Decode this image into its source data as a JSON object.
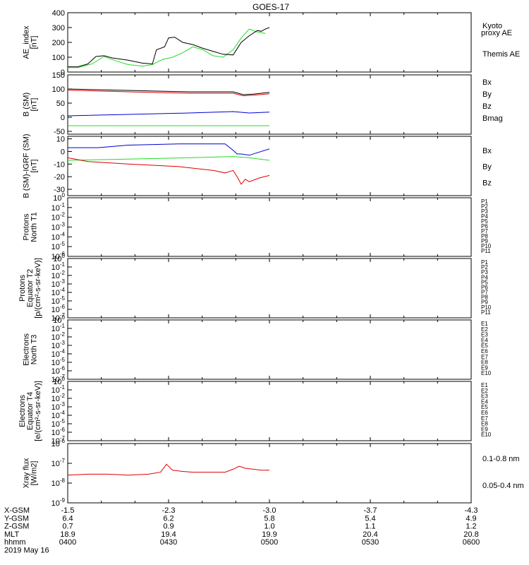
{
  "title": "GOES-17",
  "colors": {
    "black": "#000000",
    "green": "#22dd22",
    "blue": "#0000cc",
    "red": "#dd0000"
  },
  "chart_data": [
    {
      "type": "line",
      "ylabel_lines": [
        "AE_index",
        "[nT]"
      ],
      "ylim": [
        0,
        400
      ],
      "ticks": [
        "400",
        "300",
        "200",
        "100",
        "0"
      ],
      "tick_values": [
        400,
        300,
        200,
        100,
        0
      ],
      "x_hours": [
        4.0,
        5.0
      ],
      "series": [
        {
          "name": "Kyoto",
          "name2": "proxy AE",
          "color": "green",
          "x": [
            4.0,
            4.05,
            4.12,
            4.18,
            4.24,
            4.3,
            4.37,
            4.42,
            4.47,
            4.52,
            4.57,
            4.62,
            4.67,
            4.72,
            4.77,
            4.82,
            4.86,
            4.9,
            4.94,
            4.98
          ],
          "y": [
            30,
            30,
            55,
            105,
            75,
            50,
            40,
            50,
            85,
            100,
            130,
            170,
            150,
            110,
            100,
            150,
            230,
            290,
            270,
            260
          ]
        },
        {
          "name": "Themis AE",
          "color": "black",
          "x": [
            4.0,
            4.05,
            4.1,
            4.14,
            4.18,
            4.22,
            4.3,
            4.37,
            4.42,
            4.44,
            4.48,
            4.5,
            4.53,
            4.57,
            4.62,
            4.67,
            4.72,
            4.77,
            4.82,
            4.86,
            4.9,
            4.94,
            4.96,
            4.98,
            5.0
          ],
          "y": [
            35,
            35,
            55,
            105,
            110,
            95,
            80,
            60,
            55,
            150,
            170,
            230,
            235,
            200,
            185,
            160,
            140,
            120,
            115,
            200,
            245,
            280,
            275,
            290,
            300
          ]
        }
      ]
    },
    {
      "type": "line",
      "ylabel_lines": [
        "B (SM)",
        "[nT]"
      ],
      "ylim": [
        -60,
        150
      ],
      "ticks": [
        "150",
        "100",
        "50",
        "0",
        "-50"
      ],
      "tick_values": [
        150,
        100,
        50,
        0,
        -50
      ],
      "x_hours": [
        4.0,
        5.0
      ],
      "series": [
        {
          "name": "Bx",
          "color": "blue",
          "x": [
            4.0,
            4.3,
            4.6,
            4.82,
            4.9,
            5.0
          ],
          "y": [
            5,
            10,
            15,
            20,
            15,
            18
          ]
        },
        {
          "name": "By",
          "color": "green",
          "x": [
            4.0,
            5.0
          ],
          "y": [
            -30,
            -30
          ]
        },
        {
          "name": "Bz",
          "color": "red",
          "x": [
            4.0,
            4.3,
            4.6,
            4.82,
            4.87,
            4.92,
            5.0
          ],
          "y": [
            96,
            90,
            85,
            85,
            76,
            78,
            83
          ]
        },
        {
          "name": "Bmag",
          "color": "black",
          "x": [
            4.0,
            4.3,
            4.6,
            4.82,
            4.87,
            4.92,
            5.0
          ],
          "y": [
            100,
            95,
            90,
            90,
            80,
            82,
            88
          ]
        }
      ]
    },
    {
      "type": "line",
      "ylabel_lines": [
        "B (SM)-IGRF (SM)",
        "[nT]"
      ],
      "ylim": [
        -35,
        12
      ],
      "ticks": [
        "10",
        "0",
        "-10",
        "-20",
        "-30"
      ],
      "tick_values": [
        10,
        0,
        -10,
        -20,
        -30
      ],
      "x_hours": [
        4.0,
        5.0
      ],
      "series": [
        {
          "name": "Bx",
          "color": "blue",
          "x": [
            4.0,
            4.15,
            4.3,
            4.55,
            4.78,
            4.82,
            4.84,
            4.86,
            4.9,
            4.94,
            5.0
          ],
          "y": [
            3,
            3,
            5,
            6,
            6,
            1,
            -2,
            -2,
            -3,
            -1,
            2
          ]
        },
        {
          "name": "By",
          "color": "green",
          "x": [
            4.0,
            4.3,
            4.6,
            4.82,
            4.9,
            5.0
          ],
          "y": [
            -7,
            -6,
            -5,
            -4,
            -5,
            -7
          ]
        },
        {
          "name": "Bz",
          "color": "red",
          "x": [
            4.0,
            4.1,
            4.3,
            4.55,
            4.72,
            4.78,
            4.82,
            4.84,
            4.86,
            4.88,
            4.9,
            4.95,
            5.0
          ],
          "y": [
            -5,
            -8,
            -10,
            -12,
            -15,
            -17,
            -15,
            -20,
            -26,
            -22,
            -24,
            -21,
            -19
          ]
        }
      ]
    },
    {
      "type": "line",
      "ylabel_lines": [
        "Protons",
        "North T1"
      ],
      "log": true,
      "ticks": [
        "10^0",
        "10^-1",
        "10^-2",
        "10^-3",
        "10^-4",
        "10^-5",
        "10^-6"
      ],
      "legend": [
        "P1",
        "P2",
        "P3",
        "P4",
        "P5",
        "P6",
        "P7",
        "P8",
        "P9",
        "P10",
        "P11"
      ],
      "legend_colors": [
        "#000000",
        "#660077",
        "#0000cc",
        "#0066cc",
        "#00bbbb",
        "#00aa44",
        "#aacc00",
        "#dddd00",
        "#ee8800",
        "#dd0000",
        "#990000"
      ],
      "series": []
    },
    {
      "type": "line",
      "ylabel_lines": [
        "Protons",
        "Equator T2",
        "[p/(cm²-s-sr-keV)]"
      ],
      "log": true,
      "ticks": [
        "10^0",
        "10^-1",
        "10^-2",
        "10^-3",
        "10^-4",
        "10^-5",
        "10^-6",
        "10^-7"
      ],
      "legend": [
        "P1",
        "P2",
        "P3",
        "P4",
        "P5",
        "P6",
        "P7",
        "P8",
        "P9",
        "P10",
        "P11"
      ],
      "legend_colors": [
        "#000000",
        "#660077",
        "#0000cc",
        "#0066cc",
        "#00bbbb",
        "#00aa44",
        "#aacc00",
        "#dddd00",
        "#ee8800",
        "#dd0000",
        "#990000"
      ],
      "series": []
    },
    {
      "type": "line",
      "ylabel_lines": [
        "Electrons",
        "North T3"
      ],
      "log": true,
      "ticks": [
        "10^0",
        "10^-1",
        "10^-2",
        "10^-3",
        "10^-4",
        "10^-5",
        "10^-6",
        "10^-7"
      ],
      "legend": [
        "E1",
        "E2",
        "E3",
        "E4",
        "E5",
        "E6",
        "E7",
        "E8",
        "E9",
        "E10"
      ],
      "legend_colors": [
        "#000000",
        "#660077",
        "#0000cc",
        "#0066cc",
        "#00bbbb",
        "#00aa44",
        "#aacc00",
        "#ee8800",
        "#dd0000",
        "#990000"
      ],
      "series": []
    },
    {
      "type": "line",
      "ylabel_lines": [
        "Electrons",
        "Equator T4",
        "[e/(cm²-s-sr-keV)]"
      ],
      "log": true,
      "ticks": [
        "10^0",
        "10^-1",
        "10^-2",
        "10^-3",
        "10^-4",
        "10^-5",
        "10^-6",
        "10^-7"
      ],
      "legend": [
        "E1",
        "E2",
        "E3",
        "E4",
        "E5",
        "E6",
        "E7",
        "E8",
        "E9",
        "E10"
      ],
      "legend_colors": [
        "#000000",
        "#660077",
        "#0000cc",
        "#0066cc",
        "#00bbbb",
        "#00aa44",
        "#aacc00",
        "#ee8800",
        "#dd0000",
        "#990000"
      ],
      "series": []
    },
    {
      "type": "line",
      "ylabel_lines": [
        "Xray flux",
        "[W/m2]"
      ],
      "log": true,
      "ylim_log10": [
        -9,
        -6
      ],
      "ticks": [
        "10^-6",
        "10^-7",
        "10^-8",
        "10^-9"
      ],
      "x_hours": [
        4.0,
        5.0
      ],
      "series": [
        {
          "name": "0.1-0.8 nm",
          "color": "red",
          "x": [
            4.0,
            4.1,
            4.2,
            4.3,
            4.4,
            4.46,
            4.49,
            4.52,
            4.56,
            4.62,
            4.7,
            4.78,
            4.82,
            4.85,
            4.88,
            4.92,
            4.96,
            5.0
          ],
          "y_log10": [
            -7.6,
            -7.55,
            -7.55,
            -7.6,
            -7.55,
            -7.45,
            -7.05,
            -7.35,
            -7.4,
            -7.45,
            -7.45,
            -7.45,
            -7.3,
            -7.15,
            -7.25,
            -7.3,
            -7.35,
            -7.35
          ]
        },
        {
          "name": "0.05-0.4 nm",
          "color": "blue",
          "x": [],
          "y_log10": []
        }
      ]
    }
  ],
  "x_axis": {
    "rows": [
      {
        "label": "X-GSM",
        "values": [
          "-1.5",
          "-2.3",
          "-3.0",
          "-3.7",
          "-4.3"
        ]
      },
      {
        "label": "Y-GSM",
        "values": [
          "6.4",
          "6.2",
          "5.8",
          "5.4",
          "4.9"
        ]
      },
      {
        "label": "Z-GSM",
        "values": [
          "0.7",
          "0.9",
          "1.0",
          "1.1",
          "1.2"
        ]
      },
      {
        "label": "MLT",
        "values": [
          "18.9",
          "19.4",
          "19.9",
          "20.4",
          "20.8"
        ]
      },
      {
        "label": "hhmm",
        "values": [
          "0400",
          "0430",
          "0500",
          "0530",
          "0600"
        ]
      }
    ],
    "date": "2019 May 16"
  }
}
